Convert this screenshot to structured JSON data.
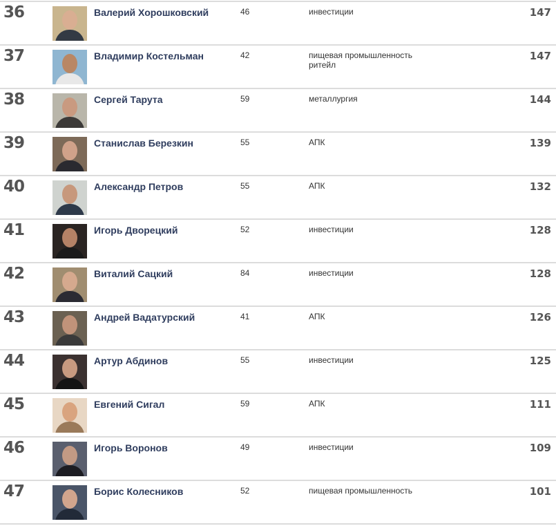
{
  "rows": [
    {
      "rank": "36",
      "name": "Валерий Хорошковский",
      "age": "46",
      "industry": [
        "инвестиции"
      ],
      "worth": "147",
      "photo_bg": "#c9b58e",
      "skin": "#d9ae92",
      "suit": "#333a44"
    },
    {
      "rank": "37",
      "name": "Владимир Костельман",
      "age": "42",
      "industry": [
        "пищевая промышленность",
        "ритейл"
      ],
      "worth": "147",
      "photo_bg": "#8fb6d1",
      "skin": "#b98764",
      "suit": "#e8e8e8"
    },
    {
      "rank": "38",
      "name": "Сергей Тарута",
      "age": "59",
      "industry": [
        "металлургия"
      ],
      "worth": "144",
      "photo_bg": "#b9b6aa",
      "skin": "#c99a80",
      "suit": "#3c3a38"
    },
    {
      "rank": "39",
      "name": "Станислав Березкин",
      "age": "55",
      "industry": [
        "АПК"
      ],
      "worth": "139",
      "photo_bg": "#7d6a58",
      "skin": "#d0a28a",
      "suit": "#2a2a30"
    },
    {
      "rank": "40",
      "name": "Александр Петров",
      "age": "55",
      "industry": [
        "АПК"
      ],
      "worth": "132",
      "photo_bg": "#cfd3cf",
      "skin": "#c7987c",
      "suit": "#2e3a4a"
    },
    {
      "rank": "41",
      "name": "Игорь Дворецкий",
      "age": "52",
      "industry": [
        "инвестиции"
      ],
      "worth": "128",
      "photo_bg": "#2a2422",
      "skin": "#b58266",
      "suit": "#1a1a1a"
    },
    {
      "rank": "42",
      "name": "Виталий Сацкий",
      "age": "84",
      "industry": [
        "инвестиции"
      ],
      "worth": "128",
      "photo_bg": "#a08d70",
      "skin": "#d5a98e",
      "suit": "#2b2b33"
    },
    {
      "rank": "43",
      "name": "Андрей Вадатурский",
      "age": "41",
      "industry": [
        "АПК"
      ],
      "worth": "126",
      "photo_bg": "#6b6152",
      "skin": "#c1937a",
      "suit": "#3a3a3a"
    },
    {
      "rank": "44",
      "name": "Артур Абдинов",
      "age": "55",
      "industry": [
        "инвестиции"
      ],
      "worth": "125",
      "photo_bg": "#3b3130",
      "skin": "#c89a80",
      "suit": "#141414"
    },
    {
      "rank": "45",
      "name": "Евгений Сигал",
      "age": "59",
      "industry": [
        "АПК"
      ],
      "worth": "111",
      "photo_bg": "#e8d7c4",
      "skin": "#d9a47f",
      "suit": "#9a7a5a"
    },
    {
      "rank": "46",
      "name": "Игорь Воронов",
      "age": "49",
      "industry": [
        "инвестиции"
      ],
      "worth": "109",
      "photo_bg": "#5a5f6e",
      "skin": "#c39a84",
      "suit": "#1c1c22"
    },
    {
      "rank": "47",
      "name": "Борис Колесников",
      "age": "52",
      "industry": [
        "пищевая промышленность"
      ],
      "worth": "101",
      "photo_bg": "#4a5568",
      "skin": "#d1a58d",
      "suit": "#222a38"
    }
  ]
}
